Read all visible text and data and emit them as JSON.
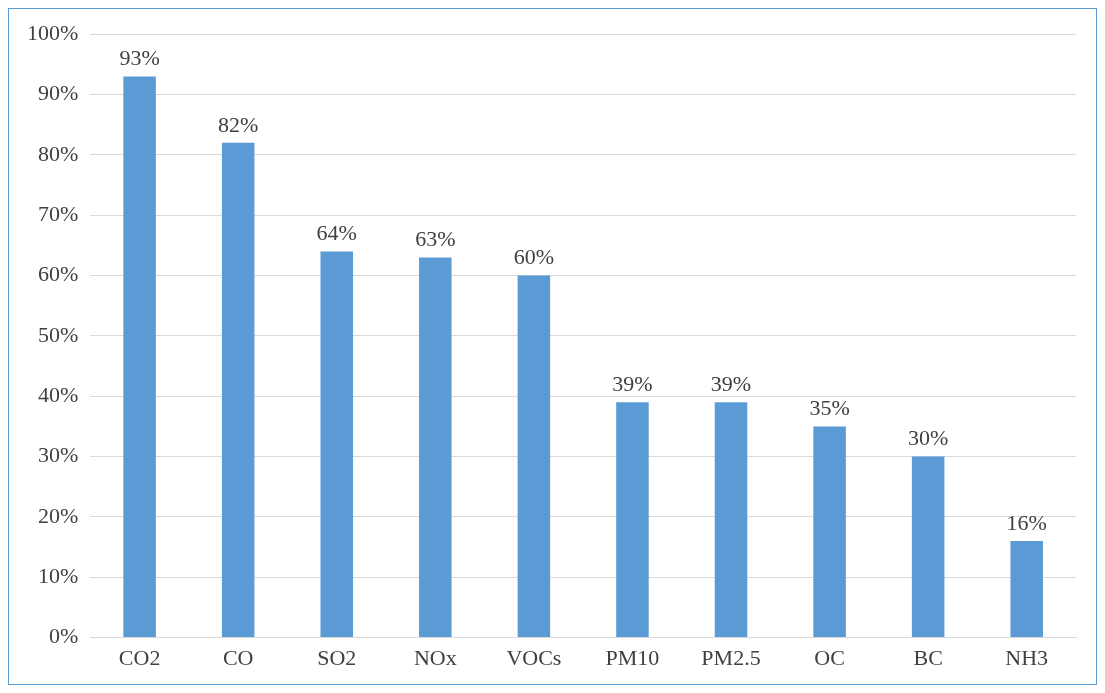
{
  "chart_data": {
    "type": "bar",
    "categories": [
      "CO2",
      "CO",
      "SO2",
      "NOx",
      "VOCs",
      "PM10",
      "PM2.5",
      "OC",
      "BC",
      "NH3"
    ],
    "values": [
      93,
      82,
      64,
      63,
      60,
      39,
      39,
      35,
      30,
      16
    ],
    "value_labels": [
      "93%",
      "82%",
      "64%",
      "63%",
      "60%",
      "39%",
      "39%",
      "35%",
      "30%",
      "16%"
    ],
    "color": "#5b9bd5",
    "ylim": [
      0,
      100
    ],
    "yticks": [
      {
        "value": 0,
        "label": "0%"
      },
      {
        "value": 10,
        "label": "10%"
      },
      {
        "value": 20,
        "label": "20%"
      },
      {
        "value": 30,
        "label": "30%"
      },
      {
        "value": 40,
        "label": "40%"
      },
      {
        "value": 50,
        "label": "50%"
      },
      {
        "value": 60,
        "label": "60%"
      },
      {
        "value": 70,
        "label": "70%"
      },
      {
        "value": 80,
        "label": "80%"
      },
      {
        "value": 90,
        "label": "90%"
      },
      {
        "value": 100,
        "label": "100%"
      }
    ],
    "grid": "y",
    "legend": false
  }
}
